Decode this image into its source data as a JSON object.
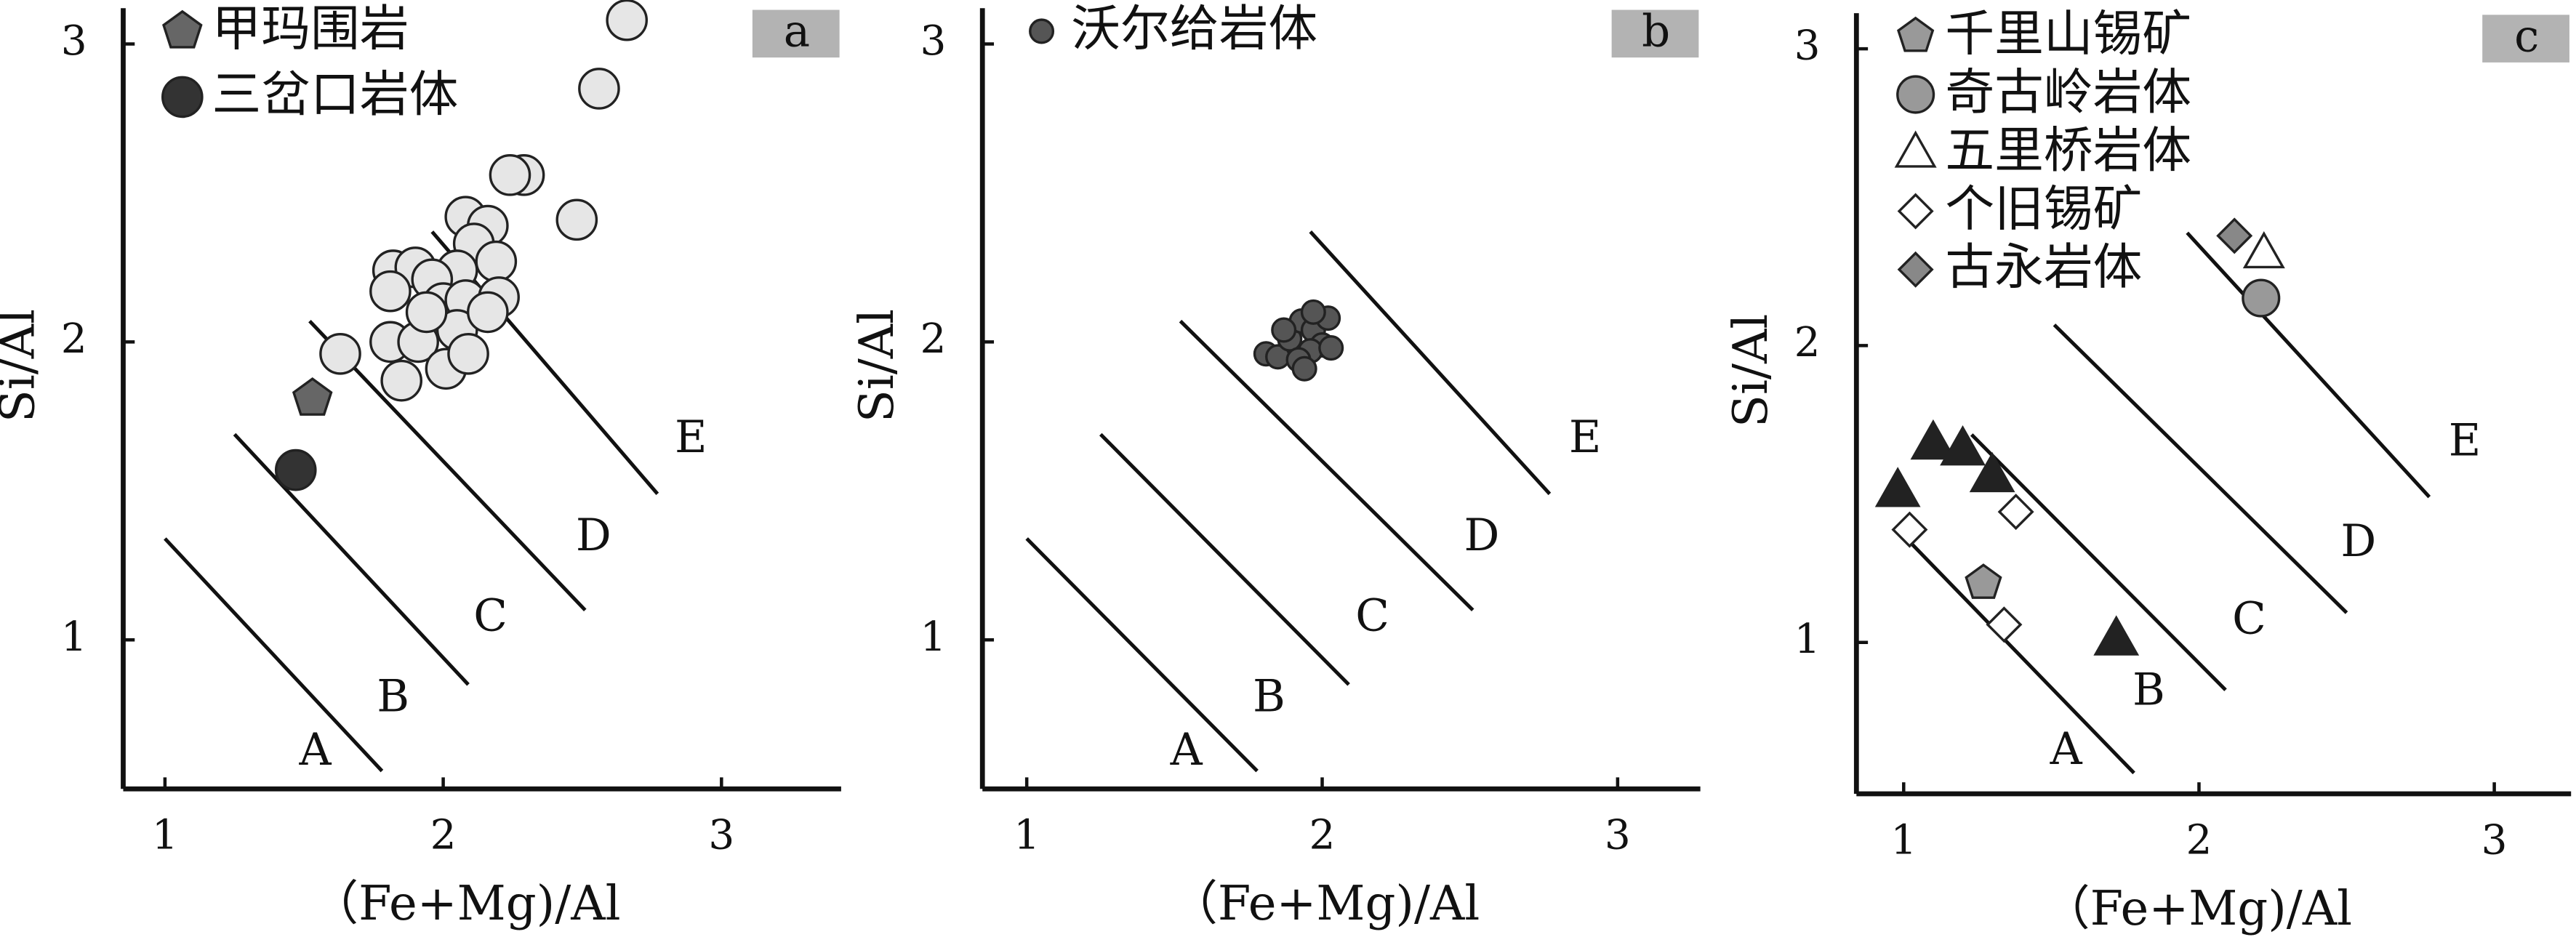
{
  "chart_data": [
    {
      "type": "scatter",
      "panel_label": "a",
      "xlabel": "（Fe+Mg)/Al",
      "ylabel": "Si/Al",
      "xlim": [
        0.85,
        3.43
      ],
      "ylim": [
        0.5,
        3.12
      ],
      "xticks": [
        1,
        2,
        3
      ],
      "yticks": [
        1,
        2,
        3
      ],
      "ref_lines": [
        {
          "x": [
            1.0,
            1.78
          ],
          "y": [
            1.34,
            0.56
          ]
        },
        {
          "x": [
            1.25,
            2.09
          ],
          "y": [
            1.69,
            0.85
          ]
        },
        {
          "x": [
            1.52,
            2.51
          ],
          "y": [
            2.07,
            1.1
          ]
        },
        {
          "x": [
            1.96,
            2.77
          ],
          "y": [
            2.37,
            1.49
          ]
        }
      ],
      "field_labels": [
        {
          "text": "A",
          "x": 1.54,
          "y": 0.62
        },
        {
          "text": "B",
          "x": 1.82,
          "y": 0.8
        },
        {
          "text": "C",
          "x": 2.17,
          "y": 1.07
        },
        {
          "text": "D",
          "x": 2.54,
          "y": 1.34
        },
        {
          "text": "E",
          "x": 2.89,
          "y": 1.67
        }
      ],
      "series": [
        {
          "marker": "circle",
          "color": "#e6e6e6",
          "size": 12,
          "x": [
            2.66,
            2.56,
            2.29,
            2.24,
            2.48,
            2.08,
            2.16,
            2.11,
            2.19,
            2.05,
            1.82,
            1.9,
            1.96,
            1.81,
            2.0,
            2.08,
            2.2,
            1.63,
            1.81,
            1.91,
            2.05,
            1.85,
            2.01,
            2.09,
            2.16,
            1.94
          ],
          "y": [
            3.08,
            2.85,
            2.56,
            2.56,
            2.41,
            2.42,
            2.39,
            2.33,
            2.27,
            2.24,
            2.24,
            2.25,
            2.21,
            2.17,
            2.13,
            2.14,
            2.15,
            1.96,
            2.0,
            2.0,
            2.04,
            1.87,
            1.91,
            1.96,
            2.1,
            2.1
          ]
        },
        {
          "name": "甲玛围岩",
          "marker": "pentagon",
          "color": "#666666",
          "size": 12,
          "x": [
            1.53
          ],
          "y": [
            1.81
          ]
        },
        {
          "name": "三岔口岩体",
          "marker": "circle",
          "color": "#333333",
          "size": 12,
          "x": [
            1.47
          ],
          "y": [
            1.57
          ]
        }
      ]
    },
    {
      "type": "scatter",
      "panel_label": "b",
      "xlabel": "（Fe+Mg)/Al",
      "ylabel": "Si/Al",
      "xlim": [
        0.85,
        3.28
      ],
      "ylim": [
        0.5,
        3.12
      ],
      "xticks": [
        1,
        2,
        3
      ],
      "yticks": [
        1,
        2,
        3
      ],
      "ref_lines": [
        {
          "x": [
            1.0,
            1.78
          ],
          "y": [
            1.34,
            0.56
          ]
        },
        {
          "x": [
            1.25,
            2.09
          ],
          "y": [
            1.69,
            0.85
          ]
        },
        {
          "x": [
            1.52,
            2.51
          ],
          "y": [
            2.07,
            1.1
          ]
        },
        {
          "x": [
            1.96,
            2.77
          ],
          "y": [
            2.37,
            1.49
          ]
        }
      ],
      "field_labels": [
        {
          "text": "A",
          "x": 1.54,
          "y": 0.62
        },
        {
          "text": "B",
          "x": 1.82,
          "y": 0.8
        },
        {
          "text": "C",
          "x": 2.17,
          "y": 1.07
        },
        {
          "text": "D",
          "x": 2.54,
          "y": 1.34
        },
        {
          "text": "E",
          "x": 2.89,
          "y": 1.67
        }
      ],
      "series": [
        {
          "name": "沃尔给岩体",
          "marker": "circle",
          "color": "#555555",
          "size": 7,
          "x": [
            1.81,
            1.85,
            1.89,
            1.93,
            1.97,
            2.02,
            2.0,
            1.96,
            1.92,
            1.94,
            2.03,
            1.87,
            1.97
          ],
          "y": [
            1.96,
            1.95,
            2.01,
            2.07,
            2.04,
            2.08,
            1.99,
            1.97,
            1.94,
            1.91,
            1.98,
            2.04,
            2.1
          ]
        }
      ]
    },
    {
      "type": "scatter",
      "panel_label": "c",
      "xlabel": "（Fe+Mg)/Al",
      "ylabel": "Si/Al",
      "xlim": [
        0.84,
        3.26
      ],
      "ylim": [
        0.49,
        3.12
      ],
      "xticks": [
        1,
        2,
        3
      ],
      "yticks": [
        1,
        2,
        3
      ],
      "ref_lines": [
        {
          "x": [
            1.0,
            1.78
          ],
          "y": [
            1.36,
            0.56
          ]
        },
        {
          "x": [
            1.23,
            2.09
          ],
          "y": [
            1.7,
            0.84
          ]
        },
        {
          "x": [
            1.51,
            2.5
          ],
          "y": [
            2.07,
            1.1
          ]
        },
        {
          "x": [
            1.96,
            2.78
          ],
          "y": [
            2.38,
            1.49
          ]
        }
      ],
      "field_labels": [
        {
          "text": "A",
          "x": 1.55,
          "y": 0.63
        },
        {
          "text": "B",
          "x": 1.83,
          "y": 0.83
        },
        {
          "text": "C",
          "x": 2.17,
          "y": 1.07
        },
        {
          "text": "D",
          "x": 2.54,
          "y": 1.33
        },
        {
          "text": "E",
          "x": 2.9,
          "y": 1.67
        }
      ],
      "series": [
        {
          "name": "千里山锡矿",
          "marker": "pentagon",
          "color": "#999999",
          "size": 11,
          "x": [
            1.27
          ],
          "y": [
            1.2
          ]
        },
        {
          "name": "奇古岭岩体",
          "marker": "circle",
          "color": "#999999",
          "size": 11,
          "x": [
            2.21
          ],
          "y": [
            2.16
          ]
        },
        {
          "name": "五里桥岩体",
          "marker": "triangle",
          "color": "#ffffff",
          "size": 11,
          "x": [
            2.22
          ],
          "y": [
            2.31
          ]
        },
        {
          "name": "个旧锡矿",
          "marker": "diamond",
          "color": "#ffffff",
          "size": 10,
          "x": [
            1.02,
            1.38,
            1.34
          ],
          "y": [
            1.38,
            1.44,
            1.06
          ]
        },
        {
          "name": "古永岩体",
          "marker": "diamond",
          "color": "#888888",
          "size": 10,
          "x": [
            2.12
          ],
          "y": [
            2.37
          ]
        },
        {
          "marker": "triangle",
          "color": "#222222",
          "size": 12,
          "x": [
            0.98,
            1.1,
            1.2,
            1.3,
            1.72
          ],
          "y": [
            1.51,
            1.67,
            1.65,
            1.56,
            1.01
          ]
        }
      ]
    }
  ]
}
